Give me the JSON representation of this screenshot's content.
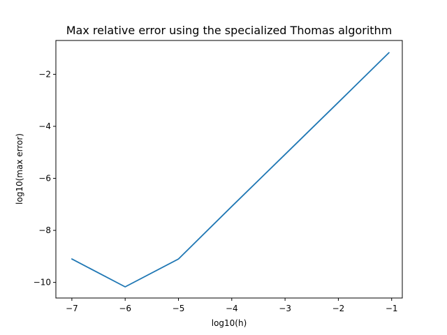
{
  "chart_data": {
    "type": "line",
    "title": "Max relative error using the specialized Thomas algorithm",
    "xlabel": "log10(h)",
    "ylabel": "log10(max error)",
    "xlim": [
      -7.3,
      -0.8
    ],
    "ylim": [
      -10.6,
      -0.7
    ],
    "xticks": [
      -7,
      -6,
      -5,
      -4,
      -3,
      -2,
      -1
    ],
    "xtick_labels": [
      "−7",
      "−6",
      "−5",
      "−4",
      "−3",
      "−2",
      "−1"
    ],
    "yticks": [
      -10,
      -8,
      -6,
      -4,
      -2
    ],
    "ytick_labels": [
      "−10",
      "−8",
      "−6",
      "−4",
      "−2"
    ],
    "grid": false,
    "series": [
      {
        "color": "#1f77b4",
        "x": [
          -7,
          -6,
          -5,
          -4,
          -3,
          -2,
          -1.05
        ],
        "y": [
          -9.1,
          -10.17,
          -9.1,
          -7.08,
          -5.08,
          -3.08,
          -1.17
        ]
      }
    ]
  }
}
